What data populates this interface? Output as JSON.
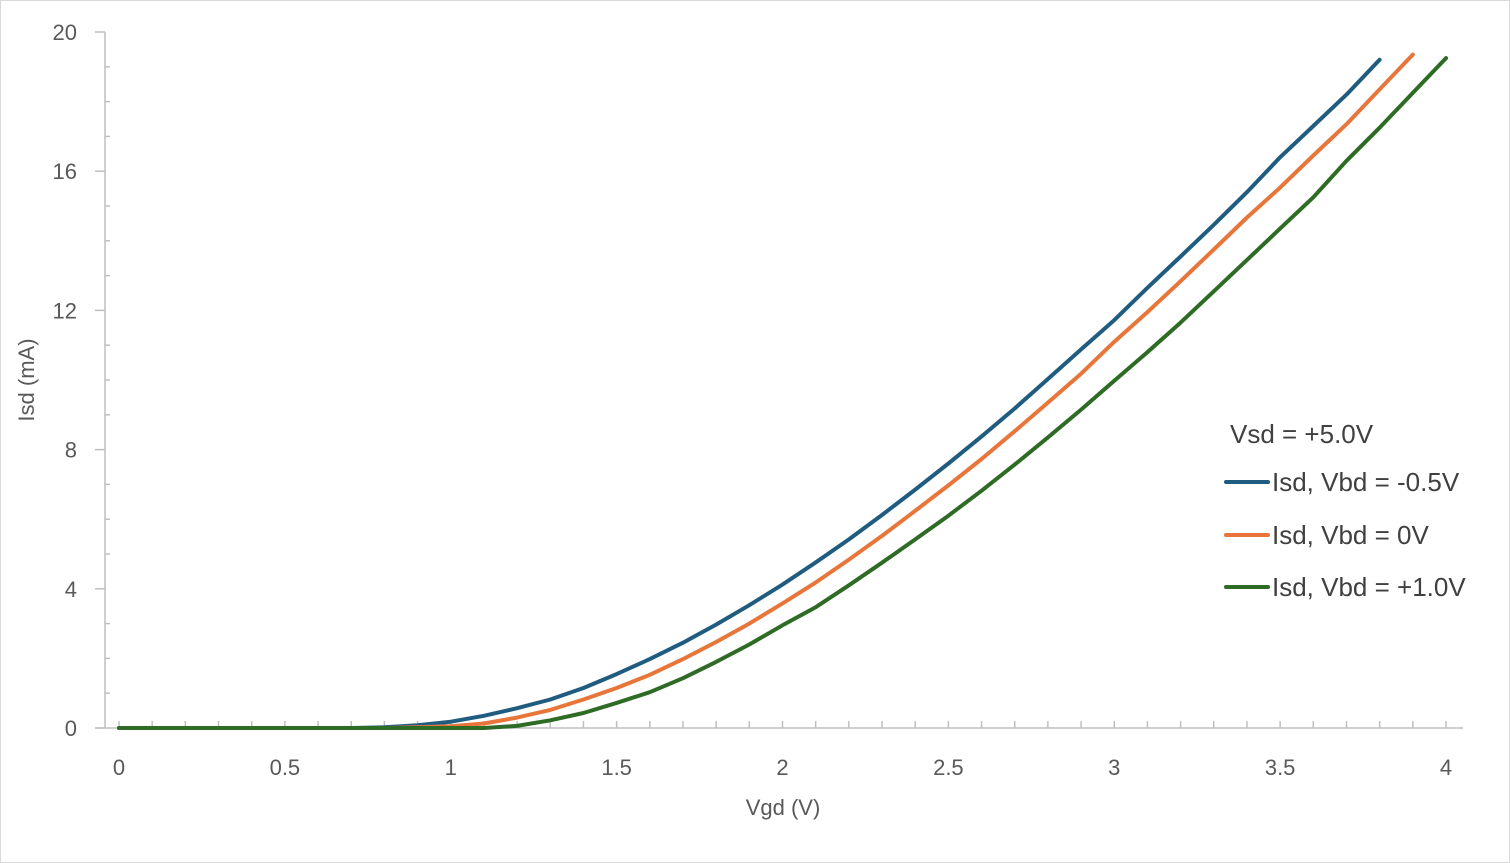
{
  "chart_data": {
    "type": "line",
    "title": "",
    "xlabel": "Vgd (V)",
    "ylabel": "Isd  (mA)",
    "xlim": [
      0,
      4
    ],
    "ylim": [
      0,
      20
    ],
    "x_ticks": [
      "0",
      "0.5",
      "1",
      "1.5",
      "2",
      "2.5",
      "3",
      "3.5",
      "4"
    ],
    "y_ticks": [
      "0",
      "4",
      "8",
      "12",
      "16",
      "20"
    ],
    "grid": false,
    "legend_position": "right",
    "legend_title": "Vsd = +5.0V",
    "series": [
      {
        "name": "Isd, Vbd = -0.5V",
        "color": "#1f5c80",
        "points": [
          [
            0,
            0
          ],
          [
            0.1,
            0
          ],
          [
            0.2,
            0
          ],
          [
            0.3,
            0
          ],
          [
            0.4,
            0
          ],
          [
            0.5,
            0
          ],
          [
            0.6,
            0
          ],
          [
            0.7,
            0
          ],
          [
            0.8,
            0.02
          ],
          [
            0.9,
            0.08
          ],
          [
            1.0,
            0.18
          ],
          [
            1.1,
            0.35
          ],
          [
            1.2,
            0.57
          ],
          [
            1.3,
            0.82
          ],
          [
            1.4,
            1.15
          ],
          [
            1.5,
            1.55
          ],
          [
            1.6,
            1.98
          ],
          [
            1.7,
            2.45
          ],
          [
            1.8,
            2.97
          ],
          [
            1.9,
            3.53
          ],
          [
            2.0,
            4.12
          ],
          [
            2.1,
            4.76
          ],
          [
            2.2,
            5.42
          ],
          [
            2.3,
            6.12
          ],
          [
            2.4,
            6.85
          ],
          [
            2.5,
            7.6
          ],
          [
            2.6,
            8.38
          ],
          [
            2.7,
            9.18
          ],
          [
            2.8,
            10.03
          ],
          [
            2.9,
            10.88
          ],
          [
            3.0,
            11.72
          ],
          [
            3.1,
            12.65
          ],
          [
            3.2,
            13.55
          ],
          [
            3.3,
            14.46
          ],
          [
            3.4,
            15.4
          ],
          [
            3.5,
            16.4
          ],
          [
            3.6,
            17.3
          ],
          [
            3.7,
            18.2
          ],
          [
            3.8,
            19.2
          ]
        ]
      },
      {
        "name": "Isd, Vbd = 0V",
        "color": "#e8763a",
        "points": [
          [
            0,
            0
          ],
          [
            0.1,
            0
          ],
          [
            0.2,
            0
          ],
          [
            0.3,
            0
          ],
          [
            0.4,
            0
          ],
          [
            0.5,
            0
          ],
          [
            0.6,
            0
          ],
          [
            0.7,
            0
          ],
          [
            0.8,
            0
          ],
          [
            0.9,
            0.02
          ],
          [
            1.0,
            0.05
          ],
          [
            1.1,
            0.13
          ],
          [
            1.2,
            0.3
          ],
          [
            1.3,
            0.52
          ],
          [
            1.4,
            0.82
          ],
          [
            1.5,
            1.15
          ],
          [
            1.6,
            1.53
          ],
          [
            1.7,
            1.98
          ],
          [
            1.8,
            2.47
          ],
          [
            1.9,
            3.0
          ],
          [
            2.0,
            3.58
          ],
          [
            2.1,
            4.18
          ],
          [
            2.2,
            4.84
          ],
          [
            2.3,
            5.52
          ],
          [
            2.4,
            6.24
          ],
          [
            2.5,
            6.97
          ],
          [
            2.6,
            7.73
          ],
          [
            2.7,
            8.53
          ],
          [
            2.8,
            9.35
          ],
          [
            2.9,
            10.18
          ],
          [
            3.0,
            11.1
          ],
          [
            3.1,
            11.95
          ],
          [
            3.2,
            12.84
          ],
          [
            3.3,
            13.75
          ],
          [
            3.4,
            14.67
          ],
          [
            3.5,
            15.53
          ],
          [
            3.6,
            16.45
          ],
          [
            3.7,
            17.35
          ],
          [
            3.8,
            18.35
          ],
          [
            3.9,
            19.35
          ]
        ]
      },
      {
        "name": "Isd, Vbd = +1.0V",
        "color": "#2e6b24",
        "points": [
          [
            0,
            0
          ],
          [
            0.1,
            0
          ],
          [
            0.2,
            0
          ],
          [
            0.3,
            0
          ],
          [
            0.4,
            0
          ],
          [
            0.5,
            0
          ],
          [
            0.6,
            0
          ],
          [
            0.7,
            0
          ],
          [
            0.8,
            0
          ],
          [
            0.9,
            0
          ],
          [
            1.0,
            0
          ],
          [
            1.1,
            0
          ],
          [
            1.2,
            0.06
          ],
          [
            1.3,
            0.22
          ],
          [
            1.4,
            0.43
          ],
          [
            1.5,
            0.72
          ],
          [
            1.6,
            1.03
          ],
          [
            1.7,
            1.43
          ],
          [
            1.8,
            1.9
          ],
          [
            1.9,
            2.4
          ],
          [
            2.0,
            2.95
          ],
          [
            2.1,
            3.47
          ],
          [
            2.2,
            4.1
          ],
          [
            2.3,
            4.75
          ],
          [
            2.4,
            5.42
          ],
          [
            2.5,
            6.1
          ],
          [
            2.6,
            6.82
          ],
          [
            2.7,
            7.57
          ],
          [
            2.8,
            8.35
          ],
          [
            2.9,
            9.15
          ],
          [
            3.0,
            9.98
          ],
          [
            3.1,
            10.8
          ],
          [
            3.2,
            11.65
          ],
          [
            3.3,
            12.55
          ],
          [
            3.4,
            13.45
          ],
          [
            3.5,
            14.35
          ],
          [
            3.6,
            15.25
          ],
          [
            3.7,
            16.3
          ],
          [
            3.8,
            17.25
          ],
          [
            3.9,
            18.25
          ],
          [
            4.0,
            19.25
          ]
        ]
      }
    ]
  }
}
